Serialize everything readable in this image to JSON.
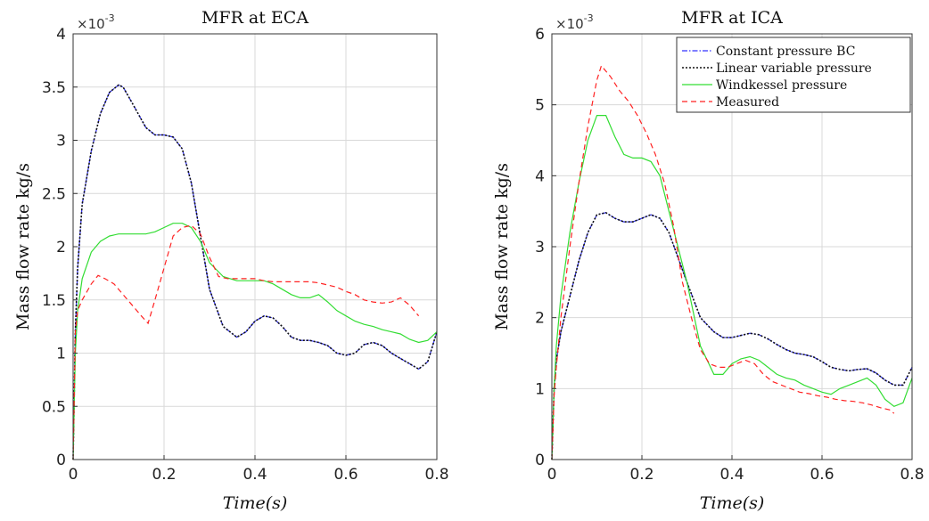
{
  "chart_data": [
    {
      "type": "line",
      "title": "MFR at ECA",
      "xlabel": "Time(s)",
      "ylabel": "Mass flow rate kg/s",
      "multiplier_base": "×10",
      "multiplier_exp": "-3",
      "xlim": [
        0,
        0.8
      ],
      "ylim": [
        0,
        4
      ],
      "xticks": [
        "0",
        "0.2",
        "0.4",
        "0.6",
        "0.8"
      ],
      "yticks": [
        "0",
        "0.5",
        "1",
        "1.5",
        "2",
        "2.5",
        "3",
        "3.5",
        "4"
      ],
      "grid": true,
      "series": [
        {
          "name": "Constant pressure BC",
          "color": "#3333ff",
          "dash": "dashdot",
          "x": [
            0,
            0.005,
            0.01,
            0.02,
            0.04,
            0.06,
            0.08,
            0.1,
            0.11,
            0.13,
            0.16,
            0.18,
            0.2,
            0.22,
            0.24,
            0.26,
            0.28,
            0.3,
            0.33,
            0.36,
            0.38,
            0.4,
            0.42,
            0.44,
            0.46,
            0.48,
            0.5,
            0.52,
            0.54,
            0.56,
            0.58,
            0.6,
            0.62,
            0.64,
            0.66,
            0.68,
            0.7,
            0.72,
            0.74,
            0.76,
            0.78,
            0.8
          ],
          "values": [
            0,
            1.2,
            1.8,
            2.4,
            2.9,
            3.25,
            3.45,
            3.52,
            3.5,
            3.35,
            3.12,
            3.05,
            3.05,
            3.03,
            2.92,
            2.6,
            2.1,
            1.6,
            1.25,
            1.15,
            1.2,
            1.3,
            1.35,
            1.33,
            1.25,
            1.15,
            1.12,
            1.12,
            1.1,
            1.07,
            1.0,
            0.98,
            1.0,
            1.08,
            1.1,
            1.07,
            1.0,
            0.95,
            0.9,
            0.85,
            0.92,
            1.2
          ]
        },
        {
          "name": "Linear variable pressure",
          "color": "#111111",
          "dash": "dotted",
          "x": [
            0,
            0.005,
            0.01,
            0.02,
            0.04,
            0.06,
            0.08,
            0.1,
            0.11,
            0.13,
            0.16,
            0.18,
            0.2,
            0.22,
            0.24,
            0.26,
            0.28,
            0.3,
            0.33,
            0.36,
            0.38,
            0.4,
            0.42,
            0.44,
            0.46,
            0.48,
            0.5,
            0.52,
            0.54,
            0.56,
            0.58,
            0.6,
            0.62,
            0.64,
            0.66,
            0.68,
            0.7,
            0.72,
            0.74,
            0.76,
            0.78,
            0.8
          ],
          "values": [
            0,
            1.2,
            1.8,
            2.4,
            2.9,
            3.25,
            3.45,
            3.52,
            3.5,
            3.35,
            3.12,
            3.05,
            3.05,
            3.03,
            2.92,
            2.6,
            2.1,
            1.6,
            1.25,
            1.15,
            1.2,
            1.3,
            1.35,
            1.33,
            1.25,
            1.15,
            1.12,
            1.12,
            1.1,
            1.07,
            1.0,
            0.98,
            1.0,
            1.08,
            1.1,
            1.07,
            1.0,
            0.95,
            0.9,
            0.85,
            0.92,
            1.2
          ]
        },
        {
          "name": "Windkessel pressure",
          "color": "#33dd33",
          "dash": "solid",
          "x": [
            0,
            0.005,
            0.01,
            0.02,
            0.04,
            0.06,
            0.08,
            0.1,
            0.12,
            0.14,
            0.16,
            0.18,
            0.2,
            0.22,
            0.24,
            0.26,
            0.28,
            0.3,
            0.33,
            0.36,
            0.38,
            0.4,
            0.42,
            0.44,
            0.46,
            0.48,
            0.5,
            0.52,
            0.54,
            0.56,
            0.58,
            0.6,
            0.62,
            0.64,
            0.66,
            0.68,
            0.7,
            0.72,
            0.74,
            0.76,
            0.78,
            0.8
          ],
          "values": [
            0,
            1.0,
            1.4,
            1.7,
            1.95,
            2.05,
            2.1,
            2.12,
            2.12,
            2.12,
            2.12,
            2.14,
            2.18,
            2.22,
            2.22,
            2.18,
            2.05,
            1.85,
            1.72,
            1.68,
            1.68,
            1.68,
            1.68,
            1.65,
            1.6,
            1.55,
            1.52,
            1.52,
            1.55,
            1.48,
            1.4,
            1.35,
            1.3,
            1.27,
            1.25,
            1.22,
            1.2,
            1.18,
            1.13,
            1.1,
            1.12,
            1.2
          ]
        },
        {
          "name": "Measured",
          "color": "#ff2222",
          "dash": "dashed",
          "x": [
            0,
            0.005,
            0.01,
            0.02,
            0.04,
            0.055,
            0.07,
            0.09,
            0.11,
            0.13,
            0.15,
            0.165,
            0.18,
            0.2,
            0.22,
            0.24,
            0.26,
            0.28,
            0.3,
            0.32,
            0.34,
            0.36,
            0.38,
            0.4,
            0.42,
            0.44,
            0.46,
            0.48,
            0.5,
            0.52,
            0.54,
            0.56,
            0.58,
            0.6,
            0.62,
            0.64,
            0.66,
            0.68,
            0.7,
            0.72,
            0.74,
            0.76
          ],
          "values": [
            0,
            1.2,
            1.4,
            1.5,
            1.65,
            1.73,
            1.7,
            1.65,
            1.55,
            1.45,
            1.35,
            1.28,
            1.5,
            1.8,
            2.1,
            2.18,
            2.2,
            2.12,
            1.9,
            1.72,
            1.7,
            1.7,
            1.7,
            1.7,
            1.68,
            1.67,
            1.67,
            1.67,
            1.67,
            1.67,
            1.66,
            1.64,
            1.62,
            1.58,
            1.55,
            1.5,
            1.48,
            1.47,
            1.48,
            1.52,
            1.45,
            1.35
          ]
        }
      ]
    },
    {
      "type": "line",
      "title": "MFR at ICA",
      "xlabel": "Time(s)",
      "ylabel": "Mass flow rate kg/s",
      "multiplier_base": "×10",
      "multiplier_exp": "-3",
      "xlim": [
        0,
        0.8
      ],
      "ylim": [
        0,
        6
      ],
      "xticks": [
        "0",
        "0.2",
        "0.4",
        "0.6",
        "0.8"
      ],
      "yticks": [
        "0",
        "1",
        "2",
        "3",
        "4",
        "5",
        "6"
      ],
      "grid": true,
      "legend": "top-right",
      "series": [
        {
          "name": "Constant pressure BC",
          "color": "#3333ff",
          "dash": "dashdot",
          "x": [
            0,
            0.005,
            0.01,
            0.02,
            0.04,
            0.06,
            0.08,
            0.1,
            0.12,
            0.14,
            0.16,
            0.18,
            0.2,
            0.22,
            0.24,
            0.26,
            0.28,
            0.3,
            0.33,
            0.36,
            0.38,
            0.4,
            0.42,
            0.44,
            0.46,
            0.48,
            0.5,
            0.52,
            0.54,
            0.56,
            0.58,
            0.6,
            0.62,
            0.64,
            0.66,
            0.68,
            0.7,
            0.72,
            0.74,
            0.76,
            0.78,
            0.8
          ],
          "values": [
            0,
            1.0,
            1.4,
            1.8,
            2.3,
            2.8,
            3.2,
            3.45,
            3.48,
            3.4,
            3.35,
            3.35,
            3.4,
            3.45,
            3.4,
            3.2,
            2.85,
            2.5,
            2.0,
            1.8,
            1.72,
            1.72,
            1.75,
            1.78,
            1.76,
            1.7,
            1.62,
            1.55,
            1.5,
            1.48,
            1.45,
            1.38,
            1.3,
            1.27,
            1.25,
            1.27,
            1.28,
            1.22,
            1.12,
            1.05,
            1.05,
            1.3
          ]
        },
        {
          "name": "Linear variable pressure",
          "color": "#111111",
          "dash": "dotted",
          "x": [
            0,
            0.005,
            0.01,
            0.02,
            0.04,
            0.06,
            0.08,
            0.1,
            0.12,
            0.14,
            0.16,
            0.18,
            0.2,
            0.22,
            0.24,
            0.26,
            0.28,
            0.3,
            0.33,
            0.36,
            0.38,
            0.4,
            0.42,
            0.44,
            0.46,
            0.48,
            0.5,
            0.52,
            0.54,
            0.56,
            0.58,
            0.6,
            0.62,
            0.64,
            0.66,
            0.68,
            0.7,
            0.72,
            0.74,
            0.76,
            0.78,
            0.8
          ],
          "values": [
            0,
            1.0,
            1.4,
            1.8,
            2.3,
            2.8,
            3.2,
            3.45,
            3.48,
            3.4,
            3.35,
            3.35,
            3.4,
            3.45,
            3.4,
            3.2,
            2.85,
            2.5,
            2.0,
            1.8,
            1.72,
            1.72,
            1.75,
            1.78,
            1.76,
            1.7,
            1.62,
            1.55,
            1.5,
            1.48,
            1.45,
            1.38,
            1.3,
            1.27,
            1.25,
            1.27,
            1.28,
            1.22,
            1.12,
            1.05,
            1.05,
            1.3
          ]
        },
        {
          "name": "Windkessel pressure",
          "color": "#33dd33",
          "dash": "solid",
          "x": [
            0,
            0.005,
            0.01,
            0.02,
            0.04,
            0.06,
            0.08,
            0.1,
            0.12,
            0.14,
            0.16,
            0.18,
            0.2,
            0.22,
            0.24,
            0.26,
            0.28,
            0.3,
            0.33,
            0.36,
            0.38,
            0.4,
            0.42,
            0.44,
            0.46,
            0.48,
            0.5,
            0.52,
            0.54,
            0.56,
            0.58,
            0.6,
            0.62,
            0.64,
            0.66,
            0.68,
            0.7,
            0.72,
            0.74,
            0.76,
            0.78,
            0.8
          ],
          "values": [
            0,
            1.0,
            1.6,
            2.3,
            3.2,
            3.9,
            4.5,
            4.85,
            4.85,
            4.55,
            4.3,
            4.25,
            4.25,
            4.2,
            4.0,
            3.5,
            3.0,
            2.5,
            1.6,
            1.2,
            1.2,
            1.35,
            1.42,
            1.45,
            1.4,
            1.3,
            1.2,
            1.15,
            1.12,
            1.05,
            1.0,
            0.95,
            0.92,
            1.0,
            1.05,
            1.1,
            1.15,
            1.05,
            0.85,
            0.75,
            0.8,
            1.15
          ]
        },
        {
          "name": "Measured",
          "color": "#ff2222",
          "dash": "dashed",
          "x": [
            0,
            0.005,
            0.01,
            0.02,
            0.04,
            0.06,
            0.08,
            0.1,
            0.11,
            0.13,
            0.15,
            0.17,
            0.19,
            0.21,
            0.23,
            0.25,
            0.27,
            0.29,
            0.31,
            0.33,
            0.35,
            0.37,
            0.39,
            0.41,
            0.43,
            0.45,
            0.47,
            0.49,
            0.51,
            0.53,
            0.55,
            0.57,
            0.59,
            0.61,
            0.63,
            0.65,
            0.67,
            0.69,
            0.71,
            0.73,
            0.75,
            0.76
          ],
          "values": [
            0,
            0.9,
            1.3,
            2.0,
            3.0,
            3.9,
            4.7,
            5.35,
            5.55,
            5.4,
            5.2,
            5.05,
            4.85,
            4.6,
            4.3,
            3.9,
            3.3,
            2.5,
            2.0,
            1.55,
            1.35,
            1.3,
            1.3,
            1.35,
            1.4,
            1.35,
            1.2,
            1.1,
            1.05,
            1.0,
            0.95,
            0.93,
            0.9,
            0.88,
            0.85,
            0.83,
            0.82,
            0.8,
            0.77,
            0.73,
            0.7,
            0.65
          ]
        }
      ]
    }
  ]
}
